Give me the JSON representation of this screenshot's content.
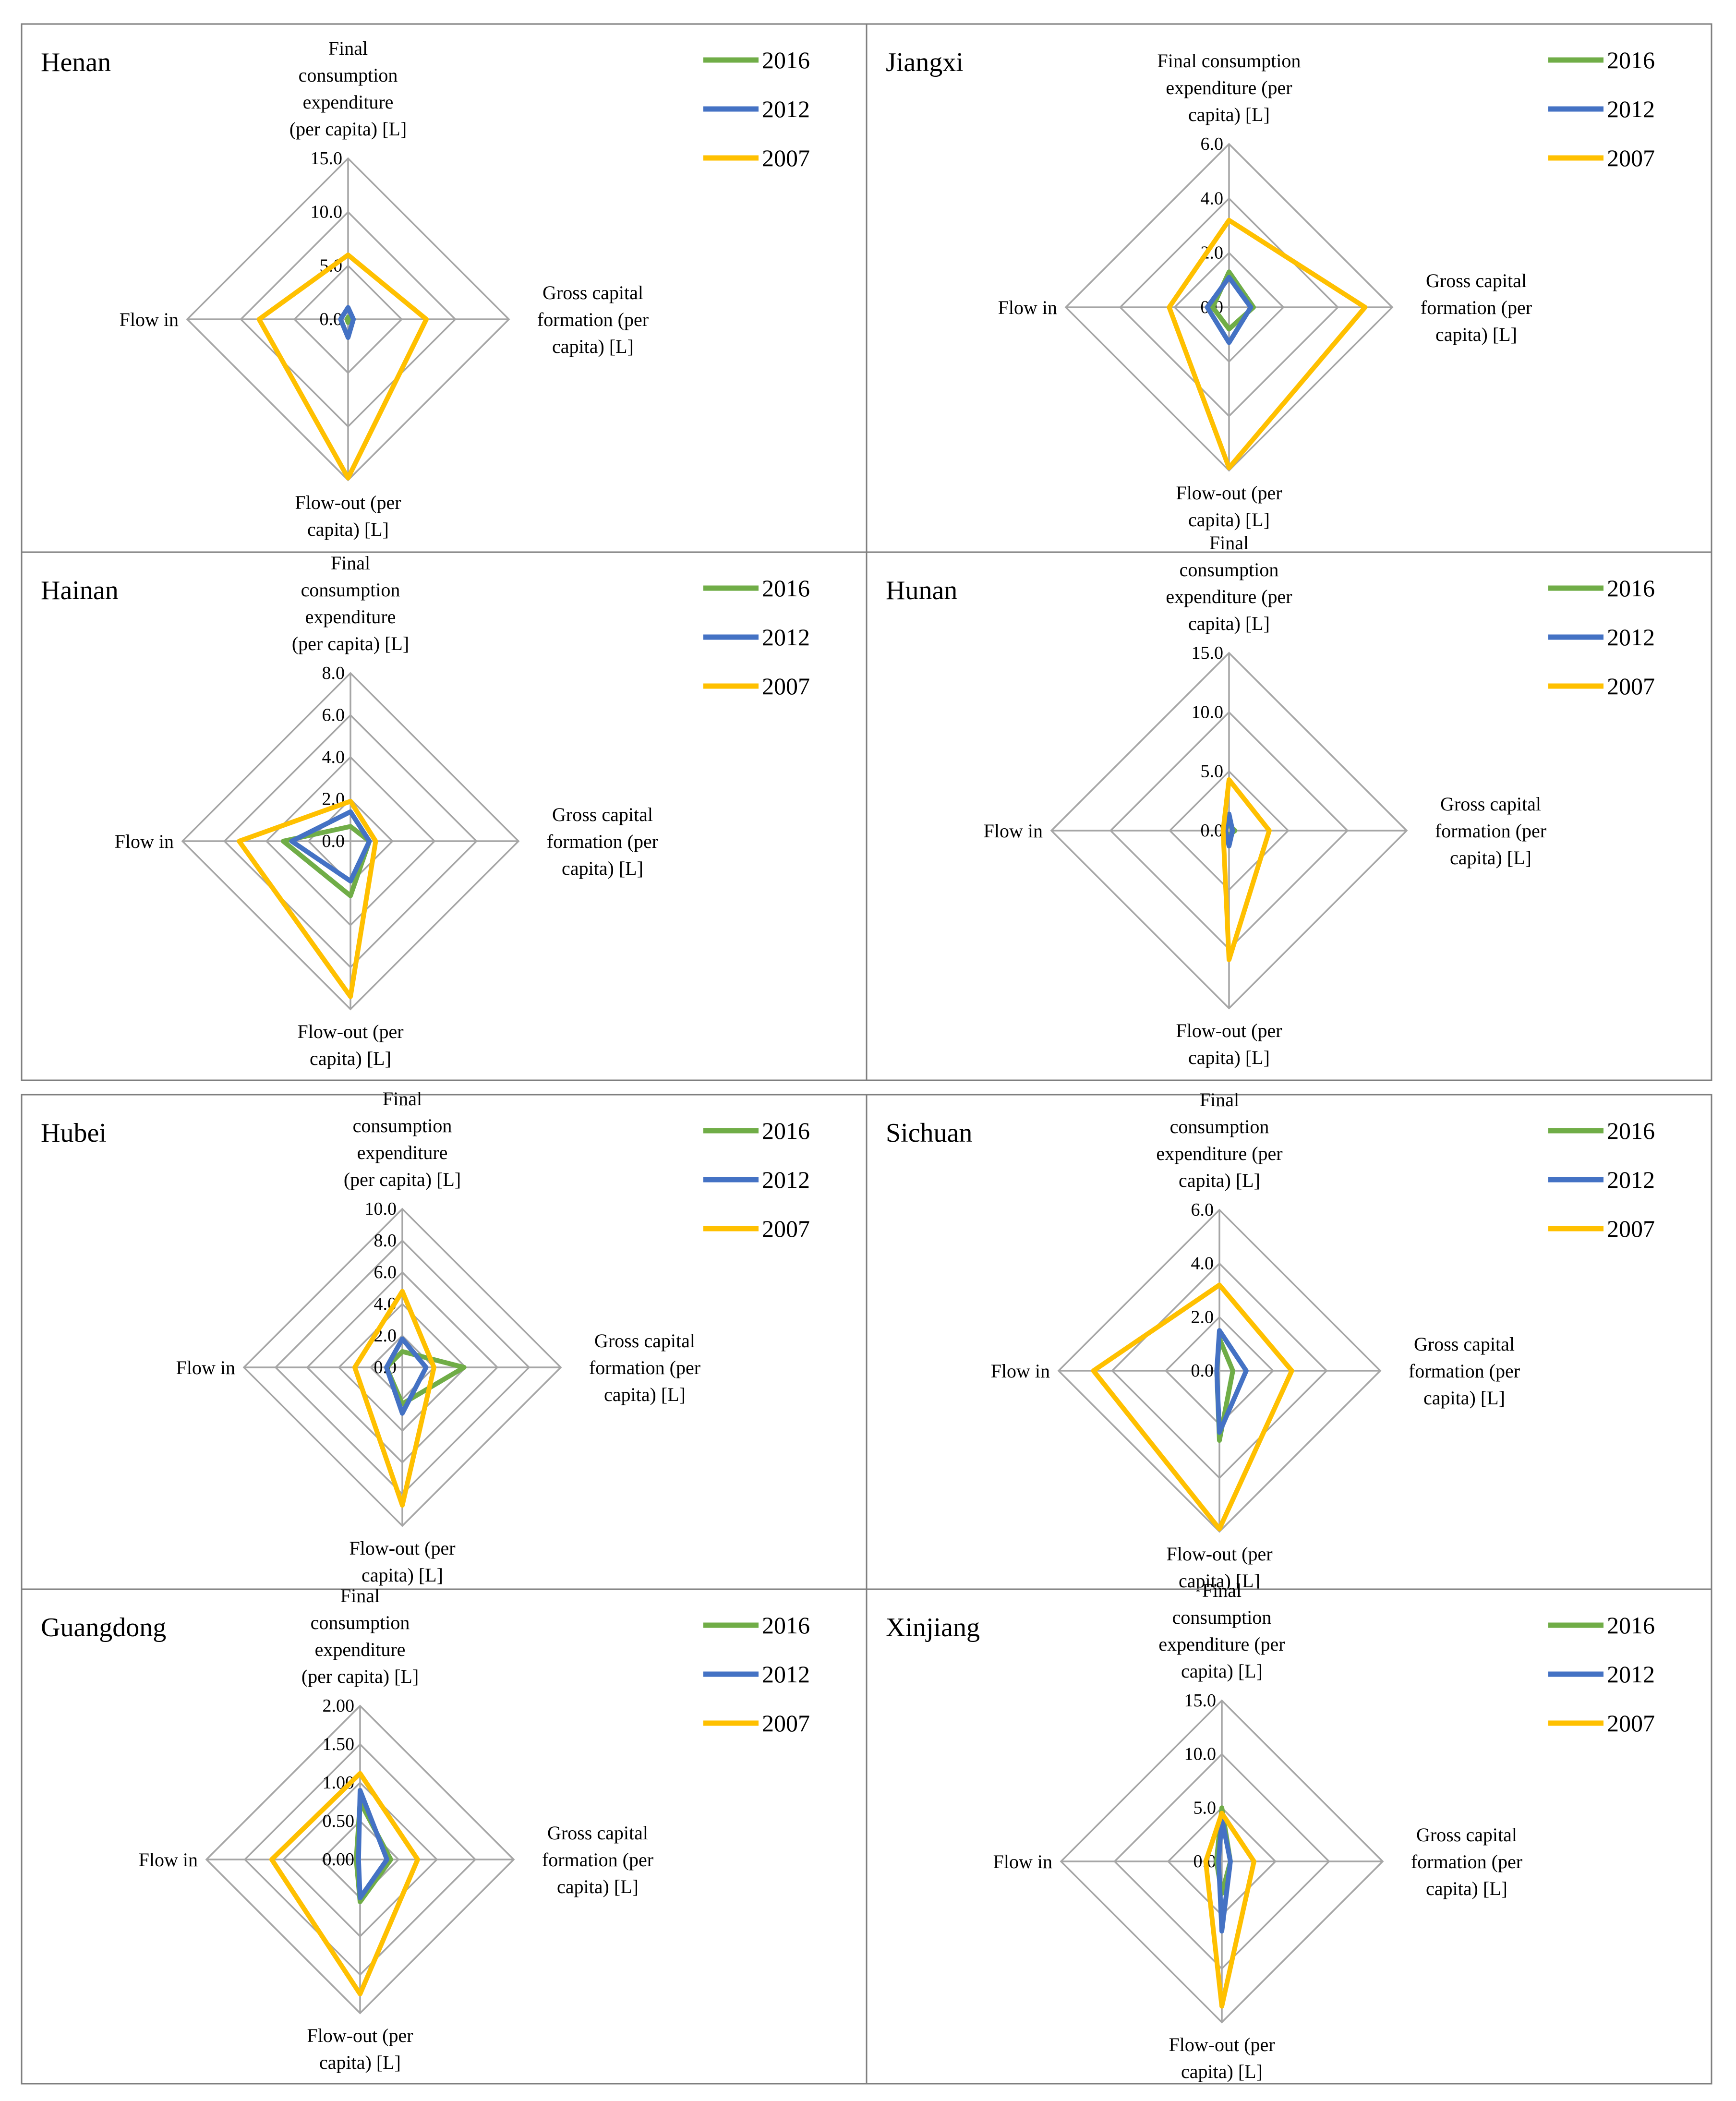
{
  "chart_data": [
    {
      "type": "radar",
      "title": "Henan",
      "axes": [
        "Final consumption expenditure (per capita) [L]",
        "Gross capital formation (per capita) [L]",
        "Flow-out (per capita) [L]",
        "Flow in"
      ],
      "axis_label_lines": [
        [
          "Final",
          "consumption",
          "expenditure",
          "(per capita) [L]"
        ],
        [
          "Gross capital",
          "formation (per",
          "capita) [L]"
        ],
        [
          "Flow-out (per",
          "capita) [L]"
        ],
        [
          "Flow in"
        ]
      ],
      "r_ticks": [
        "0.0",
        "5.0",
        "10.0",
        "15.0"
      ],
      "rlim": [
        0,
        15
      ],
      "series": [
        {
          "name": "2016",
          "color": "#70ad47",
          "values": [
            0.2,
            0.1,
            0.3,
            0.1
          ]
        },
        {
          "name": "2012",
          "color": "#4472c4",
          "values": [
            1.1,
            0.5,
            1.7,
            0.7
          ]
        },
        {
          "name": "2007",
          "color": "#ffc000",
          "values": [
            6.0,
            7.3,
            14.8,
            8.3
          ]
        }
      ],
      "legend": "top-right"
    },
    {
      "type": "radar",
      "title": "Jiangxi",
      "axes": [
        "Final consumption expenditure (per capita) [L]",
        "Gross capital formation (per capita) [L]",
        "Flow-out (per capita) [L]",
        "Flow in"
      ],
      "axis_label_lines": [
        [
          "Final consumption",
          "expenditure (per",
          "capita) [L]"
        ],
        [
          "Gross capital",
          "formation (per",
          "capita) [L]"
        ],
        [
          "Flow-out (per",
          "capita) [L]"
        ],
        [
          "Flow in"
        ]
      ],
      "r_ticks": [
        "0.0",
        "2.0",
        "4.0",
        "6.0"
      ],
      "rlim": [
        0,
        6
      ],
      "series": [
        {
          "name": "2016",
          "color": "#70ad47",
          "values": [
            1.3,
            0.9,
            0.8,
            0.6
          ]
        },
        {
          "name": "2012",
          "color": "#4472c4",
          "values": [
            1.1,
            0.8,
            1.3,
            0.8
          ]
        },
        {
          "name": "2007",
          "color": "#ffc000",
          "values": [
            3.2,
            5.0,
            5.9,
            2.2
          ]
        }
      ],
      "legend": "top-right"
    },
    {
      "type": "radar",
      "title": "Hainan",
      "axes": [
        "Final consumption expenditure (per capita) [L]",
        "Gross capital formation (per capita) [L]",
        "Flow-out (per capita) [L]",
        "Flow in"
      ],
      "axis_label_lines": [
        [
          "Final",
          "consumption",
          "expenditure",
          "(per capita) [L]"
        ],
        [
          "Gross capital",
          "formation (per",
          "capita) [L]"
        ],
        [
          "Flow-out (per",
          "capita) [L]"
        ],
        [
          "Flow in"
        ]
      ],
      "r_ticks": [
        "0.0",
        "2.0",
        "4.0",
        "6.0",
        "8.0"
      ],
      "rlim": [
        0,
        8
      ],
      "series": [
        {
          "name": "2016",
          "color": "#70ad47",
          "values": [
            0.7,
            0.9,
            2.6,
            3.2
          ]
        },
        {
          "name": "2012",
          "color": "#4472c4",
          "values": [
            1.4,
            0.9,
            1.9,
            2.8
          ]
        },
        {
          "name": "2007",
          "color": "#ffc000",
          "values": [
            1.9,
            1.2,
            7.4,
            5.3
          ]
        }
      ],
      "legend": "top-right"
    },
    {
      "type": "radar",
      "title": "Hunan",
      "axes": [
        "Final consumption expenditure (per capita) [L]",
        "Gross capital formation (per capita) [L]",
        "Flow-out (per capita) [L]",
        "Flow in"
      ],
      "axis_label_lines": [
        [
          "Final",
          "consumption",
          "expenditure (per",
          "capita) [L]"
        ],
        [
          "Gross capital",
          "formation (per",
          "capita) [L]"
        ],
        [
          "Flow-out (per",
          "capita) [L]"
        ],
        [
          "Flow in"
        ]
      ],
      "r_ticks": [
        "0.0",
        "5.0",
        "10.0",
        "15.0"
      ],
      "rlim": [
        0,
        15
      ],
      "series": [
        {
          "name": "2016",
          "color": "#70ad47",
          "values": [
            0.5,
            0.5,
            0.4,
            0.5
          ]
        },
        {
          "name": "2012",
          "color": "#4472c4",
          "values": [
            1.4,
            0.3,
            1.3,
            0.3
          ]
        },
        {
          "name": "2007",
          "color": "#ffc000",
          "values": [
            4.3,
            3.4,
            10.9,
            0.5
          ]
        }
      ],
      "legend": "top-right"
    },
    {
      "type": "radar",
      "title": "Hubei",
      "axes": [
        "Final consumption expenditure (per capita) [L]",
        "Gross capital formation (per capita) [L]",
        "Flow-out (per capita) [L]",
        "Flow in"
      ],
      "axis_label_lines": [
        [
          "Final",
          "consumption",
          "expenditure",
          "(per capita) [L]"
        ],
        [
          "Gross capital",
          "formation (per",
          "capita) [L]"
        ],
        [
          "Flow-out (per",
          "capita) [L]"
        ],
        [
          "Flow in"
        ]
      ],
      "r_ticks": [
        "0.0",
        "2.0",
        "4.0",
        "6.0",
        "8.0",
        "10.0"
      ],
      "rlim": [
        0,
        10
      ],
      "series": [
        {
          "name": "2016",
          "color": "#70ad47",
          "values": [
            1.0,
            3.9,
            2.3,
            1.0
          ]
        },
        {
          "name": "2012",
          "color": "#4472c4",
          "values": [
            1.8,
            1.5,
            2.9,
            1.0
          ]
        },
        {
          "name": "2007",
          "color": "#ffc000",
          "values": [
            4.8,
            2.0,
            8.7,
            3.0
          ]
        }
      ],
      "legend": "top-right"
    },
    {
      "type": "radar",
      "title": "Sichuan",
      "axes": [
        "Final consumption expenditure (per capita) [L]",
        "Gross capital formation (per capita) [L]",
        "Flow-out (per capita) [L]",
        "Flow in"
      ],
      "axis_label_lines": [
        [
          "Final",
          "consumption",
          "expenditure (per",
          "capita) [L]"
        ],
        [
          "Gross capital",
          "formation (per",
          "capita) [L]"
        ],
        [
          "Flow-out (per",
          "capita) [L]"
        ],
        [
          "Flow in"
        ]
      ],
      "r_ticks": [
        "0.0",
        "2.0",
        "4.0",
        "6.0"
      ],
      "rlim": [
        0,
        6
      ],
      "series": [
        {
          "name": "2016",
          "color": "#70ad47",
          "values": [
            1.2,
            0.5,
            2.6,
            0.1
          ]
        },
        {
          "name": "2012",
          "color": "#4472c4",
          "values": [
            1.5,
            1.0,
            2.3,
            0.1
          ]
        },
        {
          "name": "2007",
          "color": "#ffc000",
          "values": [
            3.2,
            2.7,
            5.9,
            4.7
          ]
        }
      ],
      "legend": "top-right"
    },
    {
      "type": "radar",
      "title": "Guangdong",
      "axes": [
        "Final consumption expenditure (per capita) [L]",
        "Gross capital formation (per capita) [L]",
        "Flow-out (per capita) [L]",
        "Flow in"
      ],
      "axis_label_lines": [
        [
          "Final",
          "consumption",
          "expenditure",
          "(per capita) [L]"
        ],
        [
          "Gross capital",
          "formation (per",
          "capita) [L]"
        ],
        [
          "Flow-out (per",
          "capita) [L]"
        ],
        [
          "Flow in"
        ]
      ],
      "r_ticks": [
        "0.00",
        "0.50",
        "1.00",
        "1.50",
        "2.00"
      ],
      "rlim": [
        0,
        2
      ],
      "series": [
        {
          "name": "2016",
          "color": "#70ad47",
          "values": [
            0.75,
            0.4,
            0.55,
            0.05
          ]
        },
        {
          "name": "2012",
          "color": "#4472c4",
          "values": [
            0.9,
            0.35,
            0.5,
            0.02
          ]
        },
        {
          "name": "2007",
          "color": "#ffc000",
          "values": [
            1.12,
            0.75,
            1.75,
            1.15
          ]
        }
      ],
      "legend": "top-right"
    },
    {
      "type": "radar",
      "title": "Xinjiang",
      "axes": [
        "Final consumption expenditure (per capita) [L]",
        "Gross capital formation (per capita) [L]",
        "Flow-out (per capita) [L]",
        "Flow in"
      ],
      "axis_label_lines": [
        [
          "Final",
          "consumption",
          "expenditure (per",
          "capita) [L]"
        ],
        [
          "Gross capital",
          "formation (per",
          "capita) [L]"
        ],
        [
          "Flow-out (per",
          "capita) [L]"
        ],
        [
          "Flow in"
        ]
      ],
      "r_ticks": [
        "0.0",
        "5.0",
        "10.0",
        "15.0"
      ],
      "rlim": [
        0,
        15
      ],
      "series": [
        {
          "name": "2016",
          "color": "#70ad47",
          "values": [
            5.0,
            0.8,
            3.0,
            0.5
          ]
        },
        {
          "name": "2012",
          "color": "#4472c4",
          "values": [
            4.0,
            0.8,
            6.5,
            0.3
          ]
        },
        {
          "name": "2007",
          "color": "#ffc000",
          "values": [
            4.5,
            3.0,
            13.5,
            1.5
          ]
        }
      ],
      "legend": "top-right"
    }
  ]
}
